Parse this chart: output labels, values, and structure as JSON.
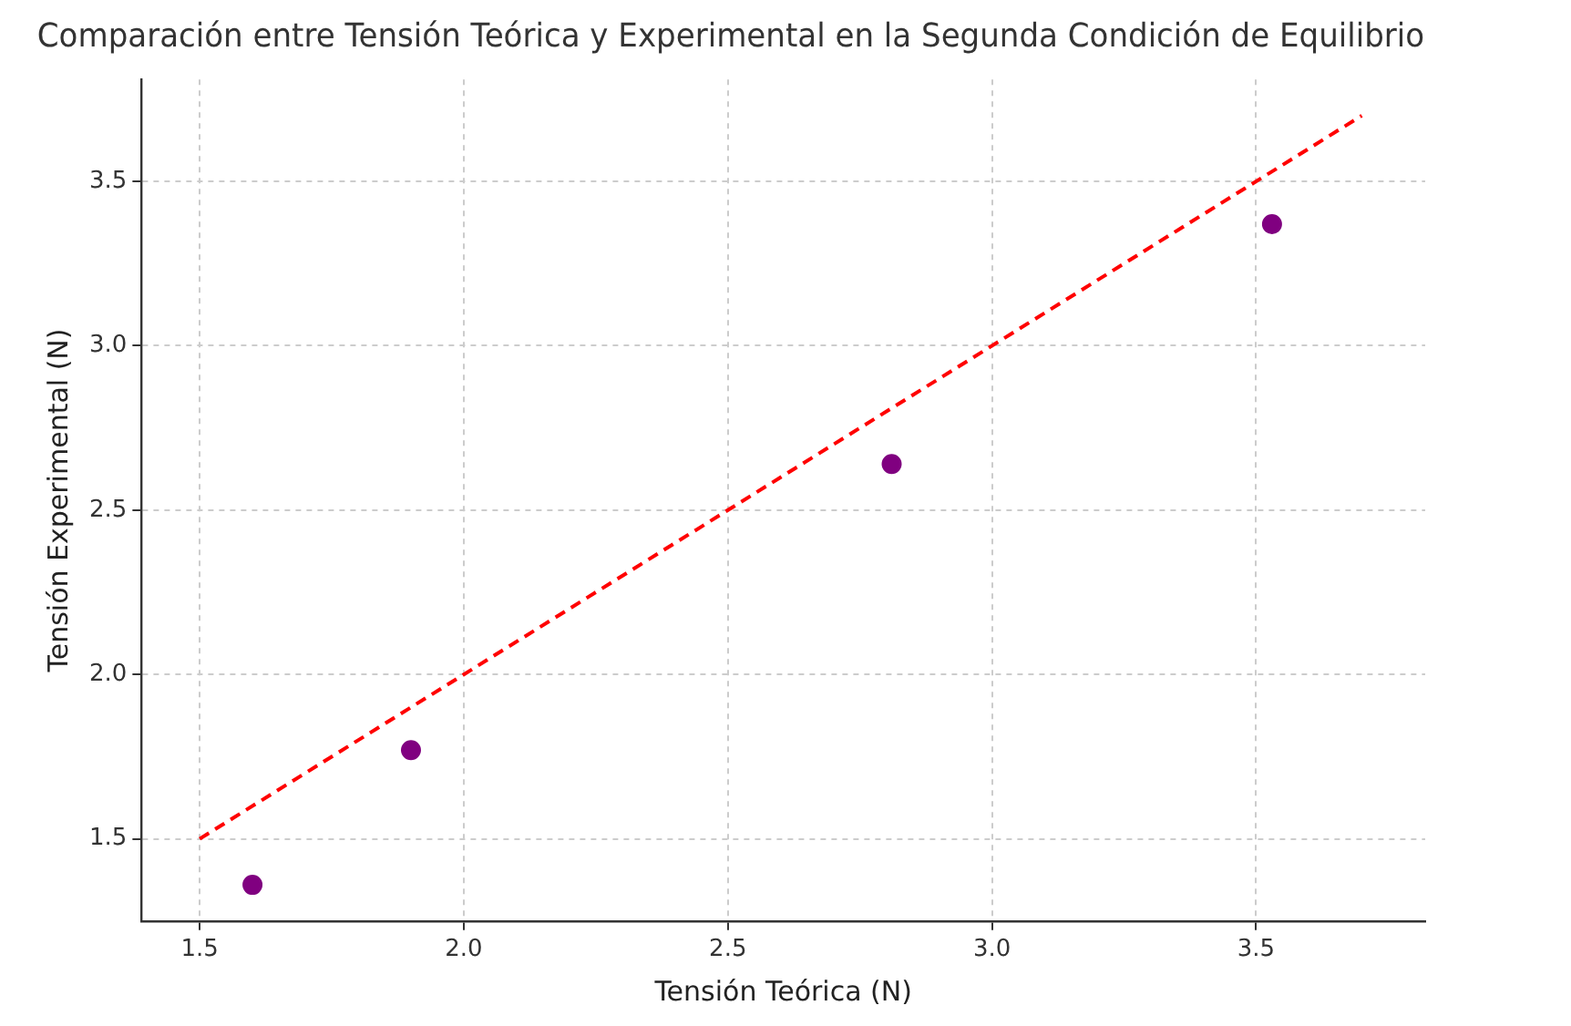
{
  "chart_data": {
    "type": "scatter",
    "title": "Comparación entre Tensión Teórica y Experimental en la Segunda Condición de Equilibrio",
    "xlabel": "Tensión Teórica (N)",
    "ylabel": "Tensión Experimental (N)",
    "x": [
      1.6,
      1.9,
      2.81,
      3.53
    ],
    "series": [
      {
        "color": "#800080",
        "marker": "circle",
        "values": [
          1.36,
          1.77,
          2.64,
          3.37
        ]
      },
      {
        "type": "line",
        "color": "#ff0000",
        "line_style": "dashed",
        "marker": "none",
        "x": [
          1.5,
          3.7
        ],
        "values": [
          1.5,
          3.7
        ]
      }
    ],
    "xlim": [
      1.39,
      3.82
    ],
    "ylim": [
      1.25,
      3.81
    ],
    "xticks": [
      1.5,
      {
        "value": 2,
        "label": "2.0"
      },
      2.5,
      {
        "value": 3,
        "label": "3.0"
      },
      3.5
    ],
    "yticks": [
      1.5,
      {
        "value": 2,
        "label": "2.0"
      },
      2.5,
      {
        "value": 3,
        "label": "3.0"
      },
      3.5
    ],
    "grid": true,
    "legend": false
  }
}
